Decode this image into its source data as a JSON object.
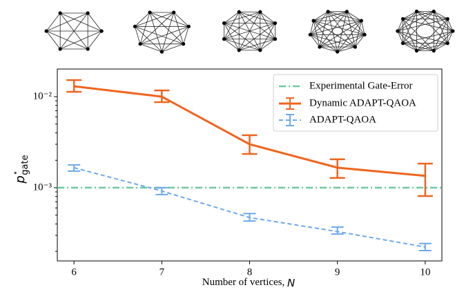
{
  "chart_data": {
    "type": "line",
    "x": [
      6,
      7,
      8,
      9,
      10
    ],
    "xlabel": {
      "text": "Number of vertices, ",
      "var": "N"
    },
    "ylabel": {
      "base": "p",
      "sup": "⋆",
      "sub": "gate"
    },
    "xlim": [
      5.81,
      10.19
    ],
    "xticks": [
      6,
      7,
      8,
      9,
      10
    ],
    "ylim": [
      0.000157,
      0.0201
    ],
    "log_y": true,
    "yticks": [
      {
        "value": 0.001,
        "label": "10⁻³"
      },
      {
        "value": 0.01,
        "label": "10⁻²"
      }
    ],
    "yminorticks": [
      0.0002,
      0.0003,
      0.0004,
      0.0005,
      0.0006,
      0.0007,
      0.0008,
      0.0009,
      0.002,
      0.003,
      0.004,
      0.005,
      0.006,
      0.007,
      0.008,
      0.009
    ],
    "hline": {
      "name": "Experimental Gate-Error",
      "value": 0.001,
      "color": "#6cc9a0"
    },
    "series": [
      {
        "name": "Dynamic ADAPT-QAOA",
        "color": "#f0641e",
        "dash": false,
        "values": [
          0.013,
          0.01,
          0.003,
          0.00166,
          0.00135
        ],
        "error_low": [
          0.0113,
          0.0087,
          0.00235,
          0.00128,
          0.00081
        ],
        "error_high": [
          0.0152,
          0.0117,
          0.00377,
          0.00205,
          0.00184
        ]
      },
      {
        "name": "ADAPT-QAOA",
        "color": "#6aa8ef",
        "dash": true,
        "values": [
          0.00166,
          0.00092,
          0.00047,
          0.00033,
          0.000223
        ],
        "error_low": [
          0.00152,
          0.00084,
          0.00043,
          0.00031,
          0.000204
        ],
        "error_high": [
          0.00178,
          0.001,
          0.00052,
          0.00037,
          0.000244
        ]
      }
    ],
    "legend": "upper right"
  }
}
